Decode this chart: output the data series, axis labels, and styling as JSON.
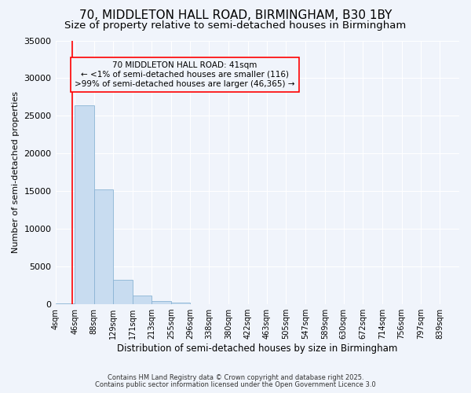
{
  "title_line1": "70, MIDDLETON HALL ROAD, BIRMINGHAM, B30 1BY",
  "title_line2": "Size of property relative to semi-detached houses in Birmingham",
  "xlabel": "Distribution of semi-detached houses by size in Birmingham",
  "ylabel": "Number of semi-detached properties",
  "bar_color": "#c8dcf0",
  "bar_edge_color": "#8ab4d4",
  "property_line_color": "red",
  "property_size": 41,
  "annotation_title": "70 MIDDLETON HALL ROAD: 41sqm",
  "annotation_line2": "← <1% of semi-detached houses are smaller (116)",
  "annotation_line3": ">99% of semi-detached houses are larger (46,365) →",
  "footnote1": "Contains HM Land Registry data © Crown copyright and database right 2025.",
  "footnote2": "Contains public sector information licensed under the Open Government Licence 3.0",
  "bin_edges": [
    4,
    46,
    88,
    129,
    171,
    213,
    255,
    296,
    338,
    380,
    422,
    463,
    505,
    547,
    589,
    630,
    672,
    714,
    756,
    797,
    839
  ],
  "bin_heights": [
    116,
    26400,
    15200,
    3200,
    1200,
    450,
    200,
    0,
    0,
    0,
    0,
    0,
    0,
    0,
    0,
    0,
    0,
    0,
    0,
    0
  ],
  "ylim": [
    0,
    35000
  ],
  "yticks": [
    0,
    5000,
    10000,
    15000,
    20000,
    25000,
    30000,
    35000
  ],
  "background_color": "#f0f4fb",
  "grid_color": "#ffffff",
  "title_fontsize": 11,
  "subtitle_fontsize": 9.5
}
